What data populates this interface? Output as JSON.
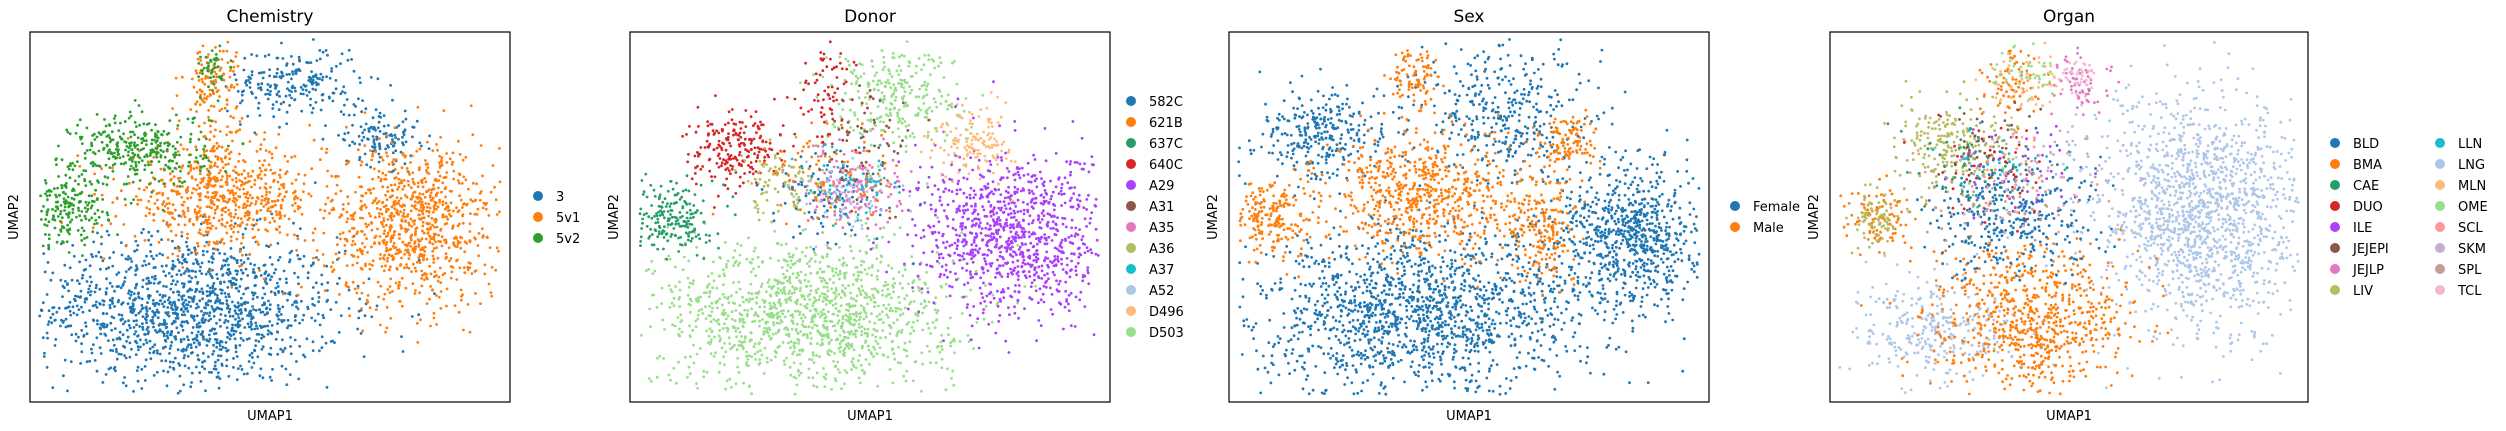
{
  "chart_data": [
    {
      "type": "scatter",
      "title": "Chemistry",
      "xlabel": "UMAP1",
      "ylabel": "UMAP2",
      "ticks": "none",
      "legend_position": "right",
      "categories": [
        {
          "name": "3",
          "color": "#1f77b4"
        },
        {
          "name": "5v1",
          "color": "#ff7f0e"
        },
        {
          "name": "5v2",
          "color": "#2ca02c"
        }
      ],
      "clusters": [
        {
          "cat": 0,
          "cx": 0.33,
          "cy": 0.25,
          "sx": 0.16,
          "sy": 0.1,
          "n": 1400
        },
        {
          "cat": 0,
          "cx": 0.55,
          "cy": 0.86,
          "sx": 0.07,
          "sy": 0.05,
          "n": 220
        },
        {
          "cat": 0,
          "cx": 0.73,
          "cy": 0.72,
          "sx": 0.04,
          "sy": 0.04,
          "n": 120
        },
        {
          "cat": 1,
          "cx": 0.8,
          "cy": 0.48,
          "sx": 0.09,
          "sy": 0.11,
          "n": 900
        },
        {
          "cat": 1,
          "cx": 0.4,
          "cy": 0.55,
          "sx": 0.1,
          "sy": 0.07,
          "n": 650
        },
        {
          "cat": 1,
          "cx": 0.38,
          "cy": 0.85,
          "sx": 0.03,
          "sy": 0.07,
          "n": 140
        },
        {
          "cat": 2,
          "cx": 0.23,
          "cy": 0.68,
          "sx": 0.07,
          "sy": 0.05,
          "n": 320
        },
        {
          "cat": 2,
          "cx": 0.08,
          "cy": 0.52,
          "sx": 0.04,
          "sy": 0.05,
          "n": 200
        },
        {
          "cat": 2,
          "cx": 0.38,
          "cy": 0.9,
          "sx": 0.02,
          "sy": 0.03,
          "n": 40
        }
      ]
    },
    {
      "type": "scatter",
      "title": "Donor",
      "xlabel": "UMAP1",
      "ylabel": "UMAP2",
      "ticks": "none",
      "legend_position": "right",
      "categories": [
        {
          "name": "582C",
          "color": "#1f77b4"
        },
        {
          "name": "621B",
          "color": "#ff7f0e"
        },
        {
          "name": "637C",
          "color": "#279e68"
        },
        {
          "name": "640C",
          "color": "#d62728"
        },
        {
          "name": "A29",
          "color": "#aa40fc"
        },
        {
          "name": "A31",
          "color": "#8c564b"
        },
        {
          "name": "A35",
          "color": "#e377c2"
        },
        {
          "name": "A36",
          "color": "#b5bd61"
        },
        {
          "name": "A37",
          "color": "#17becf"
        },
        {
          "name": "A52",
          "color": "#aec7e8"
        },
        {
          "name": "D496",
          "color": "#ffbb78"
        },
        {
          "name": "D503",
          "color": "#98df8a"
        }
      ],
      "clusters": [
        {
          "cat": 11,
          "cx": 0.37,
          "cy": 0.24,
          "sx": 0.16,
          "sy": 0.1,
          "n": 1300
        },
        {
          "cat": 11,
          "cx": 0.55,
          "cy": 0.83,
          "sx": 0.07,
          "sy": 0.07,
          "n": 280
        },
        {
          "cat": 4,
          "cx": 0.8,
          "cy": 0.45,
          "sx": 0.1,
          "sy": 0.11,
          "n": 1000
        },
        {
          "cat": 3,
          "cx": 0.22,
          "cy": 0.68,
          "sx": 0.05,
          "sy": 0.05,
          "n": 220
        },
        {
          "cat": 2,
          "cx": 0.09,
          "cy": 0.5,
          "sx": 0.04,
          "sy": 0.05,
          "n": 200
        },
        {
          "cat": 6,
          "cx": 0.46,
          "cy": 0.58,
          "sx": 0.05,
          "sy": 0.05,
          "n": 170
        },
        {
          "cat": 10,
          "cx": 0.72,
          "cy": 0.7,
          "sx": 0.04,
          "sy": 0.05,
          "n": 140
        },
        {
          "cat": 7,
          "cx": 0.33,
          "cy": 0.6,
          "sx": 0.06,
          "sy": 0.05,
          "n": 100
        },
        {
          "cat": 0,
          "cx": 0.42,
          "cy": 0.55,
          "sx": 0.07,
          "sy": 0.07,
          "n": 90
        },
        {
          "cat": 1,
          "cx": 0.42,
          "cy": 0.62,
          "sx": 0.08,
          "sy": 0.07,
          "n": 90
        },
        {
          "cat": 5,
          "cx": 0.5,
          "cy": 0.7,
          "sx": 0.05,
          "sy": 0.08,
          "n": 70
        },
        {
          "cat": 3,
          "cx": 0.41,
          "cy": 0.82,
          "sx": 0.03,
          "sy": 0.07,
          "n": 70
        },
        {
          "cat": 8,
          "cx": 0.47,
          "cy": 0.6,
          "sx": 0.05,
          "sy": 0.05,
          "n": 60
        },
        {
          "cat": 9,
          "cx": 0.45,
          "cy": 0.55,
          "sx": 0.06,
          "sy": 0.06,
          "n": 50
        }
      ]
    },
    {
      "type": "scatter",
      "title": "Sex",
      "xlabel": "UMAP1",
      "ylabel": "UMAP2",
      "ticks": "none",
      "legend_position": "right",
      "categories": [
        {
          "name": "Female",
          "color": "#1f77b4"
        },
        {
          "name": "Male",
          "color": "#ff7f0e"
        }
      ],
      "clusters": [
        {
          "cat": 0,
          "cx": 0.4,
          "cy": 0.24,
          "sx": 0.17,
          "sy": 0.11,
          "n": 1500
        },
        {
          "cat": 0,
          "cx": 0.84,
          "cy": 0.45,
          "sx": 0.08,
          "sy": 0.1,
          "n": 800
        },
        {
          "cat": 0,
          "cx": 0.2,
          "cy": 0.72,
          "sx": 0.07,
          "sy": 0.06,
          "n": 300
        },
        {
          "cat": 0,
          "cx": 0.57,
          "cy": 0.78,
          "sx": 0.09,
          "sy": 0.09,
          "n": 360
        },
        {
          "cat": 1,
          "cx": 0.4,
          "cy": 0.56,
          "sx": 0.1,
          "sy": 0.08,
          "n": 650
        },
        {
          "cat": 1,
          "cx": 0.65,
          "cy": 0.47,
          "sx": 0.04,
          "sy": 0.07,
          "n": 200
        },
        {
          "cat": 1,
          "cx": 0.09,
          "cy": 0.5,
          "sx": 0.04,
          "sy": 0.05,
          "n": 200
        },
        {
          "cat": 1,
          "cx": 0.71,
          "cy": 0.7,
          "sx": 0.03,
          "sy": 0.04,
          "n": 120
        },
        {
          "cat": 1,
          "cx": 0.38,
          "cy": 0.88,
          "sx": 0.03,
          "sy": 0.05,
          "n": 100
        }
      ]
    },
    {
      "type": "scatter",
      "title": "Organ",
      "xlabel": "UMAP1",
      "ylabel": "UMAP2",
      "ticks": "none",
      "legend_position": "right",
      "legend_columns": 2,
      "categories": [
        {
          "name": "BLD",
          "color": "#1f77b4"
        },
        {
          "name": "BMA",
          "color": "#ff7f0e"
        },
        {
          "name": "CAE",
          "color": "#279e68"
        },
        {
          "name": "DUO",
          "color": "#d62728"
        },
        {
          "name": "ILE",
          "color": "#aa40fc"
        },
        {
          "name": "JEJEPI",
          "color": "#8c564b"
        },
        {
          "name": "JEJLP",
          "color": "#e377c2"
        },
        {
          "name": "LIV",
          "color": "#b5bd61"
        },
        {
          "name": "LLN",
          "color": "#17becf"
        },
        {
          "name": "LNG",
          "color": "#aec7e8"
        },
        {
          "name": "MLN",
          "color": "#ffbb78"
        },
        {
          "name": "OME",
          "color": "#98df8a"
        },
        {
          "name": "SCL",
          "color": "#ff9896"
        },
        {
          "name": "SKM",
          "color": "#c5b0d5"
        },
        {
          "name": "SPL",
          "color": "#c49c94"
        },
        {
          "name": "TCL",
          "color": "#f7b6d2"
        }
      ],
      "clusters": [
        {
          "cat": 9,
          "cx": 0.78,
          "cy": 0.5,
          "sx": 0.11,
          "sy": 0.16,
          "n": 1500
        },
        {
          "cat": 9,
          "cx": 0.22,
          "cy": 0.2,
          "sx": 0.09,
          "sy": 0.07,
          "n": 300
        },
        {
          "cat": 1,
          "cx": 0.42,
          "cy": 0.22,
          "sx": 0.1,
          "sy": 0.1,
          "n": 750
        },
        {
          "cat": 1,
          "cx": 0.1,
          "cy": 0.5,
          "sx": 0.04,
          "sy": 0.04,
          "n": 100
        },
        {
          "cat": 1,
          "cx": 0.38,
          "cy": 0.87,
          "sx": 0.03,
          "sy": 0.05,
          "n": 80
        },
        {
          "cat": 0,
          "cx": 0.38,
          "cy": 0.5,
          "sx": 0.09,
          "sy": 0.08,
          "n": 350
        },
        {
          "cat": 7,
          "cx": 0.26,
          "cy": 0.7,
          "sx": 0.06,
          "sy": 0.06,
          "n": 220
        },
        {
          "cat": 7,
          "cx": 0.1,
          "cy": 0.5,
          "sx": 0.03,
          "sy": 0.04,
          "n": 80
        },
        {
          "cat": 2,
          "cx": 0.3,
          "cy": 0.64,
          "sx": 0.07,
          "sy": 0.06,
          "n": 60
        },
        {
          "cat": 3,
          "cx": 0.34,
          "cy": 0.64,
          "sx": 0.07,
          "sy": 0.06,
          "n": 50
        },
        {
          "cat": 5,
          "cx": 0.34,
          "cy": 0.7,
          "sx": 0.06,
          "sy": 0.06,
          "n": 40
        },
        {
          "cat": 4,
          "cx": 0.4,
          "cy": 0.62,
          "sx": 0.07,
          "sy": 0.06,
          "n": 40
        },
        {
          "cat": 6,
          "cx": 0.52,
          "cy": 0.86,
          "sx": 0.03,
          "sy": 0.04,
          "n": 60
        },
        {
          "cat": 12,
          "cx": 0.38,
          "cy": 0.58,
          "sx": 0.08,
          "sy": 0.07,
          "n": 60
        },
        {
          "cat": 13,
          "cx": 0.48,
          "cy": 0.65,
          "sx": 0.07,
          "sy": 0.07,
          "n": 50
        },
        {
          "cat": 14,
          "cx": 0.33,
          "cy": 0.56,
          "sx": 0.08,
          "sy": 0.06,
          "n": 50
        },
        {
          "cat": 15,
          "cx": 0.52,
          "cy": 0.88,
          "sx": 0.02,
          "sy": 0.03,
          "n": 40
        },
        {
          "cat": 10,
          "cx": 0.4,
          "cy": 0.86,
          "sx": 0.04,
          "sy": 0.05,
          "n": 60
        },
        {
          "cat": 11,
          "cx": 0.4,
          "cy": 0.9,
          "sx": 0.04,
          "sy": 0.04,
          "n": 40
        },
        {
          "cat": 8,
          "cx": 0.35,
          "cy": 0.66,
          "sx": 0.06,
          "sy": 0.06,
          "n": 30
        }
      ]
    }
  ]
}
